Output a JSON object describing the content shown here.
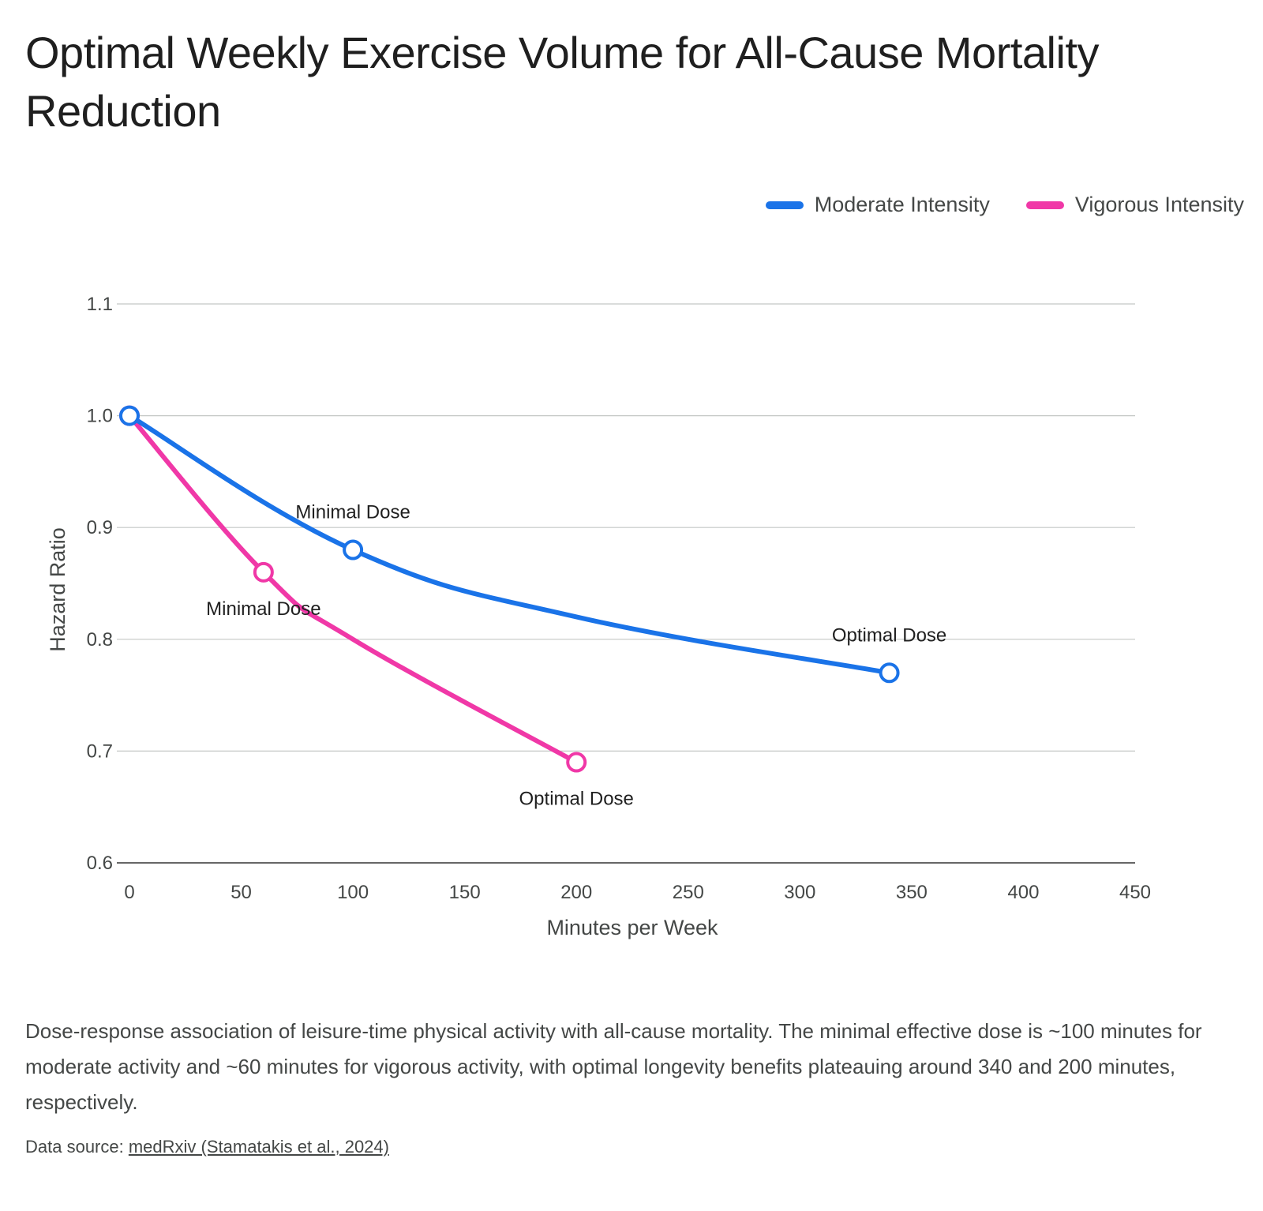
{
  "title": "Optimal Weekly Exercise Volume for All-Cause Mortality Reduction",
  "caption": "Dose-response association of leisure-time physical activity with all-cause mortality. The minimal effective dose is ~100 minutes for moderate activity and ~60 minutes for vigorous activity, with optimal longevity benefits plateauing around 340 and 200 minutes, respectively.",
  "source": {
    "prefix": "Data source: ",
    "link_text": "medRxiv (Stamatakis et al., 2024)"
  },
  "chart_data": {
    "type": "line",
    "xlabel": "Minutes per Week",
    "ylabel": "Hazard Ratio",
    "xlim": [
      0,
      450
    ],
    "ylim": [
      0.6,
      1.1
    ],
    "x_ticks": [
      0,
      50,
      100,
      150,
      200,
      250,
      300,
      350,
      400,
      450
    ],
    "y_ticks": [
      0.6,
      0.7,
      0.8,
      0.9,
      1.0,
      1.1
    ],
    "y_tick_labels": [
      "0.6",
      "0.7",
      "0.8",
      "0.9",
      "1.0",
      "1.1"
    ],
    "grid": true,
    "legend_position": "top-right",
    "series": [
      {
        "name": "Moderate Intensity",
        "color": "#1a73e8",
        "points": [
          {
            "x": 0,
            "y": 1.0,
            "marker": true
          },
          {
            "x": 100,
            "y": 0.88,
            "marker": true,
            "annotation": "Minimal Dose",
            "annotation_position": "above"
          },
          {
            "x": 200,
            "y": 0.82,
            "marker": false
          },
          {
            "x": 340,
            "y": 0.77,
            "marker": true,
            "annotation": "Optimal Dose",
            "annotation_position": "above"
          }
        ]
      },
      {
        "name": "Vigorous Intensity",
        "color": "#f038a7",
        "points": [
          {
            "x": 0,
            "y": 1.0,
            "marker": true
          },
          {
            "x": 60,
            "y": 0.86,
            "marker": true,
            "annotation": "Minimal Dose",
            "annotation_position": "below"
          },
          {
            "x": 100,
            "y": 0.8,
            "marker": false
          },
          {
            "x": 200,
            "y": 0.69,
            "marker": true,
            "annotation": "Optimal Dose",
            "annotation_position": "below"
          }
        ]
      }
    ]
  }
}
